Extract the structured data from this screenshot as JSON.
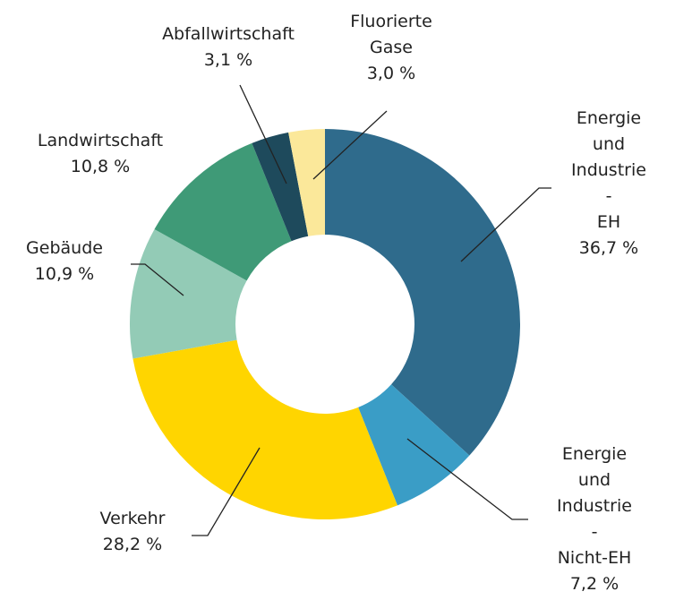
{
  "chart_data": {
    "type": "donut",
    "categories": [
      "Energie\nund\nIndustrie -\nEH",
      "Energie\nund\nIndustrie -\nNicht-EH",
      "Verkehr",
      "Gebäude",
      "Landwirtschaft",
      "Abfallwirtschaft",
      "Fluorierte\nGase"
    ],
    "values": [
      36.7,
      7.2,
      28.2,
      10.9,
      10.8,
      3.1,
      3.0
    ],
    "value_labels": [
      "36,7 %",
      "7,2 %",
      "28,2 %",
      "10,9 %",
      "10,8 %",
      "3,1 %",
      "3,0 %"
    ],
    "colors": [
      "#2f6b8c",
      "#3a9dc6",
      "#ffd500",
      "#93cbb6",
      "#3f9a77",
      "#1e4a5c",
      "#fbe89a"
    ]
  }
}
